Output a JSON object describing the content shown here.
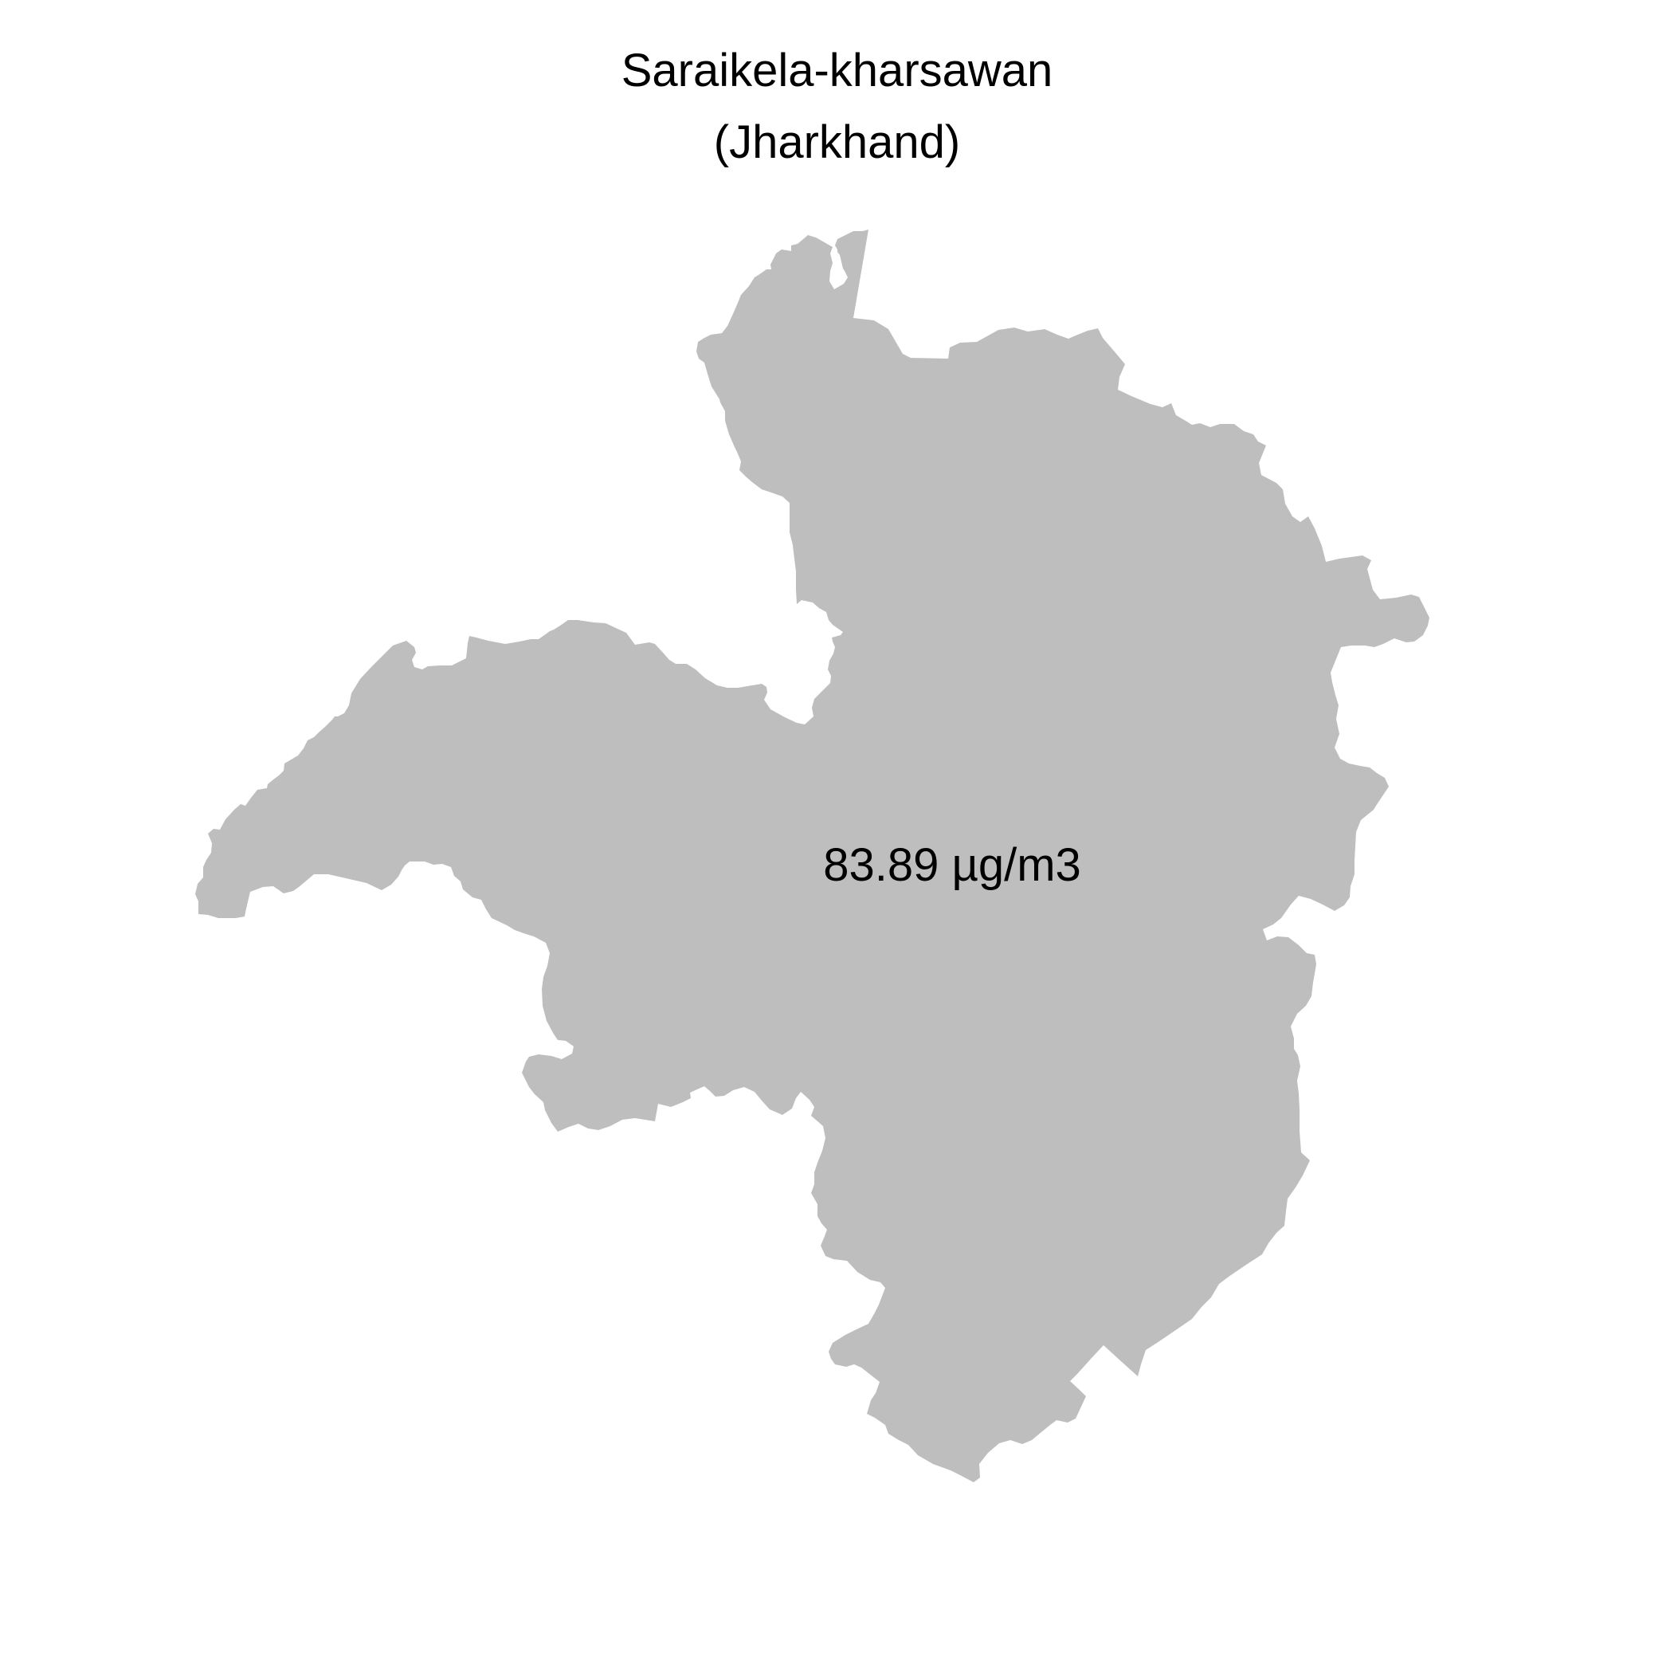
{
  "map": {
    "title_line1": "Saraikela-kharsawan",
    "title_line2": "(Jharkhand)",
    "region_name": "Saraikela-kharsawan",
    "state": "Jharkhand",
    "value_label": "83.89 µg/m3",
    "fill_color": "#bebebe",
    "background_color": "#ffffff"
  }
}
